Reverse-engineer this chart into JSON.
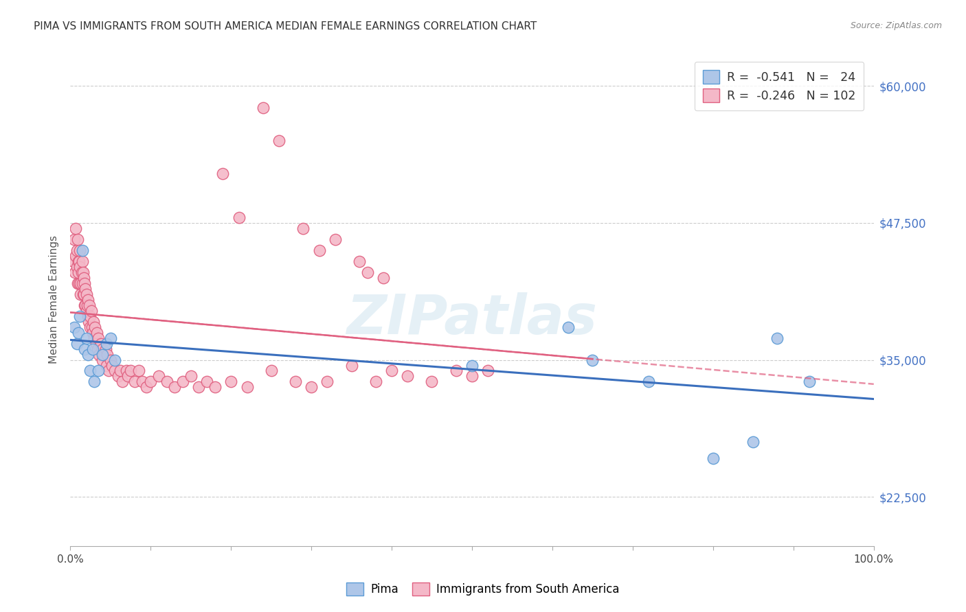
{
  "title": "PIMA VS IMMIGRANTS FROM SOUTH AMERICA MEDIAN FEMALE EARNINGS CORRELATION CHART",
  "source": "Source: ZipAtlas.com",
  "ylabel": "Median Female Earnings",
  "xlim": [
    0,
    1.0
  ],
  "ylim": [
    18000,
    63000
  ],
  "ytick_vals": [
    22500,
    35000,
    47500,
    60000
  ],
  "ytick_labels": [
    "$22,500",
    "$35,000",
    "$47,500",
    "$60,000"
  ],
  "blue_R": -0.541,
  "blue_N": 24,
  "pink_R": -0.246,
  "pink_N": 102,
  "legend_label_blue": "Pima",
  "legend_label_pink": "Immigrants from South America",
  "watermark": "ZIPatlas",
  "blue_fill": "#aec6e8",
  "blue_edge": "#5b9bd5",
  "pink_fill": "#f4b8c8",
  "pink_edge": "#e06080",
  "blue_line": "#3a6fbd",
  "pink_line": "#e06080",
  "blue_x": [
    0.005,
    0.008,
    0.01,
    0.012,
    0.015,
    0.018,
    0.02,
    0.022,
    0.025,
    0.028,
    0.03,
    0.035,
    0.04,
    0.045,
    0.05,
    0.055,
    0.5,
    0.62,
    0.65,
    0.72,
    0.8,
    0.85,
    0.88,
    0.92
  ],
  "blue_y": [
    38000,
    36500,
    37500,
    39000,
    45000,
    36000,
    37000,
    35500,
    34000,
    36000,
    33000,
    34000,
    35500,
    36500,
    37000,
    35000,
    34500,
    38000,
    35000,
    33000,
    26000,
    27500,
    37000,
    33000
  ],
  "pink_x": [
    0.004,
    0.005,
    0.006,
    0.007,
    0.007,
    0.008,
    0.008,
    0.009,
    0.009,
    0.01,
    0.01,
    0.011,
    0.011,
    0.012,
    0.012,
    0.013,
    0.013,
    0.014,
    0.015,
    0.015,
    0.016,
    0.016,
    0.017,
    0.017,
    0.018,
    0.018,
    0.019,
    0.019,
    0.02,
    0.02,
    0.021,
    0.022,
    0.022,
    0.023,
    0.024,
    0.025,
    0.025,
    0.026,
    0.027,
    0.028,
    0.029,
    0.03,
    0.031,
    0.032,
    0.033,
    0.034,
    0.035,
    0.036,
    0.038,
    0.04,
    0.04,
    0.042,
    0.044,
    0.045,
    0.046,
    0.048,
    0.05,
    0.052,
    0.055,
    0.06,
    0.062,
    0.065,
    0.07,
    0.072,
    0.075,
    0.08,
    0.085,
    0.09,
    0.095,
    0.1,
    0.11,
    0.12,
    0.13,
    0.14,
    0.15,
    0.16,
    0.17,
    0.18,
    0.2,
    0.22,
    0.25,
    0.28,
    0.3,
    0.32,
    0.35,
    0.38,
    0.4,
    0.42,
    0.45,
    0.48,
    0.5,
    0.52,
    0.21,
    0.19,
    0.29,
    0.26,
    0.31,
    0.24,
    0.33,
    0.36,
    0.37,
    0.39
  ],
  "pink_y": [
    44000,
    46000,
    43000,
    47000,
    44500,
    45000,
    43500,
    46000,
    42000,
    44000,
    43000,
    44000,
    42000,
    43500,
    45000,
    42000,
    41000,
    43000,
    44000,
    42000,
    41000,
    43000,
    42500,
    41000,
    40000,
    42000,
    41500,
    40000,
    39500,
    41000,
    40000,
    39000,
    40500,
    38500,
    40000,
    39000,
    38000,
    39500,
    38000,
    37500,
    38500,
    37000,
    38000,
    36500,
    37500,
    36000,
    37000,
    35500,
    36500,
    35000,
    36000,
    35500,
    36000,
    34500,
    35500,
    34000,
    35000,
    34500,
    34000,
    33500,
    34000,
    33000,
    34000,
    33500,
    34000,
    33000,
    34000,
    33000,
    32500,
    33000,
    33500,
    33000,
    32500,
    33000,
    33500,
    32500,
    33000,
    32500,
    33000,
    32500,
    34000,
    33000,
    32500,
    33000,
    34500,
    33000,
    34000,
    33500,
    33000,
    34000,
    33500,
    34000,
    48000,
    52000,
    47000,
    55000,
    45000,
    58000,
    46000,
    44000,
    43000,
    42500
  ]
}
